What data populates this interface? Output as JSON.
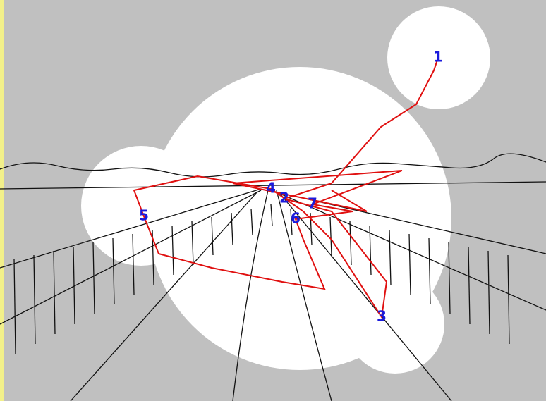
{
  "fixations": [
    {
      "label": "1"
    },
    {
      "label": "2"
    },
    {
      "label": "3"
    },
    {
      "label": "4"
    },
    {
      "label": "5"
    },
    {
      "label": "6"
    },
    {
      "label": "7"
    }
  ]
}
